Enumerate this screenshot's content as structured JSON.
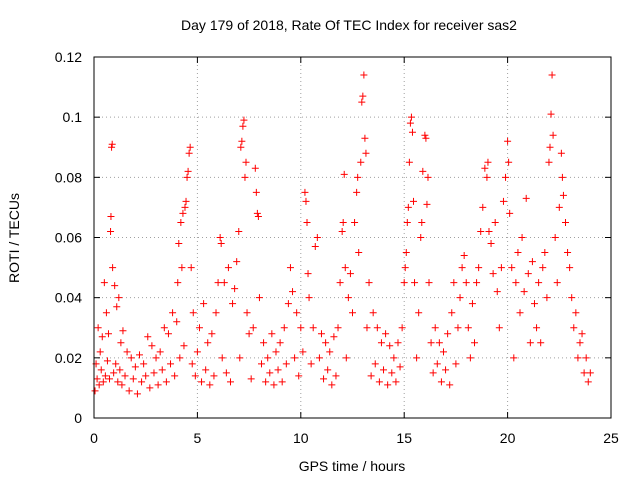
{
  "chart_data": {
    "type": "scatter",
    "title": "Day 179 of 2018, Rate Of TEC Index for receiver sas2",
    "xlabel": "GPS time / hours",
    "ylabel": "ROTI / TECUs",
    "xlim": [
      0,
      25
    ],
    "ylim": [
      0,
      0.12
    ],
    "xticks": [
      0,
      5,
      10,
      15,
      20,
      25
    ],
    "xtick_labels": [
      "0",
      "5",
      "10",
      "15",
      "20",
      "25"
    ],
    "yticks": [
      0,
      0.02,
      0.04,
      0.06,
      0.08,
      0.1,
      0.12
    ],
    "ytick_labels": [
      "0",
      "0.02",
      "0.04",
      "0.06",
      "0.08",
      "0.1",
      "0.12"
    ],
    "grid": true,
    "marker": "+",
    "color": "#ff0000",
    "series": [
      {
        "name": "ROTI",
        "points": [
          [
            0.05,
            0.009
          ],
          [
            0.1,
            0.018
          ],
          [
            0.15,
            0.013
          ],
          [
            0.2,
            0.03
          ],
          [
            0.25,
            0.011
          ],
          [
            0.3,
            0.022
          ],
          [
            0.35,
            0.016
          ],
          [
            0.4,
            0.027
          ],
          [
            0.45,
            0.012
          ],
          [
            0.5,
            0.045
          ],
          [
            0.55,
            0.014
          ],
          [
            0.6,
            0.035
          ],
          [
            0.65,
            0.019
          ],
          [
            0.7,
            0.028
          ],
          [
            0.75,
            0.013
          ],
          [
            0.8,
            0.062
          ],
          [
            0.82,
            0.067
          ],
          [
            0.85,
            0.09
          ],
          [
            0.88,
            0.091
          ],
          [
            0.9,
            0.05
          ],
          [
            0.95,
            0.015
          ],
          [
            1.0,
            0.044
          ],
          [
            1.05,
            0.018
          ],
          [
            1.1,
            0.037
          ],
          [
            1.15,
            0.012
          ],
          [
            1.2,
            0.04
          ],
          [
            1.25,
            0.016
          ],
          [
            1.3,
            0.025
          ],
          [
            1.35,
            0.011
          ],
          [
            1.4,
            0.029
          ],
          [
            1.5,
            0.014
          ],
          [
            1.6,
            0.022
          ],
          [
            1.7,
            0.009
          ],
          [
            1.8,
            0.02
          ],
          [
            1.9,
            0.013
          ],
          [
            2.0,
            0.017
          ],
          [
            2.1,
            0.008
          ],
          [
            2.2,
            0.021
          ],
          [
            2.3,
            0.012
          ],
          [
            2.4,
            0.018
          ],
          [
            2.5,
            0.014
          ],
          [
            2.6,
            0.027
          ],
          [
            2.7,
            0.01
          ],
          [
            2.8,
            0.024
          ],
          [
            2.9,
            0.015
          ],
          [
            3.0,
            0.02
          ],
          [
            3.1,
            0.011
          ],
          [
            3.2,
            0.022
          ],
          [
            3.3,
            0.016
          ],
          [
            3.4,
            0.03
          ],
          [
            3.5,
            0.012
          ],
          [
            3.6,
            0.028
          ],
          [
            3.7,
            0.018
          ],
          [
            3.8,
            0.035
          ],
          [
            3.9,
            0.014
          ],
          [
            4.0,
            0.032
          ],
          [
            4.05,
            0.045
          ],
          [
            4.1,
            0.058
          ],
          [
            4.15,
            0.02
          ],
          [
            4.2,
            0.065
          ],
          [
            4.25,
            0.05
          ],
          [
            4.3,
            0.068
          ],
          [
            4.35,
            0.024
          ],
          [
            4.4,
            0.07
          ],
          [
            4.45,
            0.072
          ],
          [
            4.5,
            0.08
          ],
          [
            4.55,
            0.082
          ],
          [
            4.6,
            0.088
          ],
          [
            4.65,
            0.09
          ],
          [
            4.7,
            0.05
          ],
          [
            4.75,
            0.018
          ],
          [
            4.8,
            0.035
          ],
          [
            4.9,
            0.014
          ],
          [
            5.0,
            0.022
          ],
          [
            5.1,
            0.03
          ],
          [
            5.2,
            0.012
          ],
          [
            5.3,
            0.038
          ],
          [
            5.4,
            0.016
          ],
          [
            5.5,
            0.025
          ],
          [
            5.6,
            0.011
          ],
          [
            5.7,
            0.028
          ],
          [
            5.8,
            0.014
          ],
          [
            5.9,
            0.035
          ],
          [
            6.0,
            0.045
          ],
          [
            6.1,
            0.06
          ],
          [
            6.15,
            0.058
          ],
          [
            6.2,
            0.02
          ],
          [
            6.3,
            0.045
          ],
          [
            6.4,
            0.015
          ],
          [
            6.5,
            0.05
          ],
          [
            6.6,
            0.012
          ],
          [
            6.7,
            0.038
          ],
          [
            6.8,
            0.043
          ],
          [
            6.9,
            0.052
          ],
          [
            7.0,
            0.062
          ],
          [
            7.05,
            0.02
          ],
          [
            7.1,
            0.09
          ],
          [
            7.15,
            0.092
          ],
          [
            7.2,
            0.097
          ],
          [
            7.25,
            0.099
          ],
          [
            7.3,
            0.08
          ],
          [
            7.35,
            0.085
          ],
          [
            7.4,
            0.035
          ],
          [
            7.5,
            0.028
          ],
          [
            7.6,
            0.013
          ],
          [
            7.7,
            0.03
          ],
          [
            7.8,
            0.083
          ],
          [
            7.85,
            0.075
          ],
          [
            7.9,
            0.068
          ],
          [
            7.95,
            0.067
          ],
          [
            8.0,
            0.04
          ],
          [
            8.1,
            0.018
          ],
          [
            8.2,
            0.025
          ],
          [
            8.3,
            0.012
          ],
          [
            8.4,
            0.02
          ],
          [
            8.5,
            0.015
          ],
          [
            8.6,
            0.028
          ],
          [
            8.7,
            0.011
          ],
          [
            8.8,
            0.022
          ],
          [
            8.9,
            0.016
          ],
          [
            9.0,
            0.025
          ],
          [
            9.1,
            0.012
          ],
          [
            9.2,
            0.03
          ],
          [
            9.3,
            0.018
          ],
          [
            9.4,
            0.038
          ],
          [
            9.5,
            0.05
          ],
          [
            9.6,
            0.042
          ],
          [
            9.7,
            0.02
          ],
          [
            9.8,
            0.035
          ],
          [
            9.9,
            0.014
          ],
          [
            10.0,
            0.03
          ],
          [
            10.1,
            0.022
          ],
          [
            10.2,
            0.075
          ],
          [
            10.25,
            0.072
          ],
          [
            10.3,
            0.065
          ],
          [
            10.35,
            0.048
          ],
          [
            10.4,
            0.04
          ],
          [
            10.5,
            0.018
          ],
          [
            10.6,
            0.03
          ],
          [
            10.7,
            0.057
          ],
          [
            10.8,
            0.06
          ],
          [
            10.9,
            0.02
          ],
          [
            11.0,
            0.028
          ],
          [
            11.1,
            0.013
          ],
          [
            11.2,
            0.025
          ],
          [
            11.3,
            0.016
          ],
          [
            11.4,
            0.022
          ],
          [
            11.5,
            0.011
          ],
          [
            11.6,
            0.027
          ],
          [
            11.7,
            0.014
          ],
          [
            11.8,
            0.03
          ],
          [
            11.9,
            0.045
          ],
          [
            12.0,
            0.062
          ],
          [
            12.05,
            0.065
          ],
          [
            12.1,
            0.081
          ],
          [
            12.15,
            0.05
          ],
          [
            12.2,
            0.02
          ],
          [
            12.3,
            0.04
          ],
          [
            12.4,
            0.048
          ],
          [
            12.5,
            0.035
          ],
          [
            12.6,
            0.065
          ],
          [
            12.7,
            0.075
          ],
          [
            12.75,
            0.08
          ],
          [
            12.8,
            0.055
          ],
          [
            12.9,
            0.085
          ],
          [
            12.95,
            0.105
          ],
          [
            13.0,
            0.107
          ],
          [
            13.05,
            0.114
          ],
          [
            13.1,
            0.093
          ],
          [
            13.15,
            0.088
          ],
          [
            13.2,
            0.03
          ],
          [
            13.3,
            0.045
          ],
          [
            13.4,
            0.014
          ],
          [
            13.5,
            0.035
          ],
          [
            13.6,
            0.018
          ],
          [
            13.7,
            0.03
          ],
          [
            13.8,
            0.012
          ],
          [
            13.9,
            0.025
          ],
          [
            14.0,
            0.016
          ],
          [
            14.1,
            0.028
          ],
          [
            14.2,
            0.011
          ],
          [
            14.3,
            0.024
          ],
          [
            14.4,
            0.015
          ],
          [
            14.5,
            0.02
          ],
          [
            14.6,
            0.012
          ],
          [
            14.7,
            0.025
          ],
          [
            14.8,
            0.017
          ],
          [
            14.9,
            0.03
          ],
          [
            15.0,
            0.045
          ],
          [
            15.05,
            0.05
          ],
          [
            15.1,
            0.055
          ],
          [
            15.15,
            0.065
          ],
          [
            15.2,
            0.07
          ],
          [
            15.25,
            0.085
          ],
          [
            15.3,
            0.098
          ],
          [
            15.35,
            0.1
          ],
          [
            15.4,
            0.095
          ],
          [
            15.45,
            0.072
          ],
          [
            15.5,
            0.045
          ],
          [
            15.6,
            0.02
          ],
          [
            15.7,
            0.035
          ],
          [
            15.8,
            0.06
          ],
          [
            15.85,
            0.065
          ],
          [
            15.9,
            0.082
          ],
          [
            16.0,
            0.094
          ],
          [
            16.05,
            0.093
          ],
          [
            16.1,
            0.071
          ],
          [
            16.15,
            0.08
          ],
          [
            16.2,
            0.045
          ],
          [
            16.3,
            0.025
          ],
          [
            16.4,
            0.015
          ],
          [
            16.5,
            0.03
          ],
          [
            16.6,
            0.018
          ],
          [
            16.7,
            0.025
          ],
          [
            16.8,
            0.012
          ],
          [
            16.9,
            0.022
          ],
          [
            17.0,
            0.016
          ],
          [
            17.1,
            0.028
          ],
          [
            17.2,
            0.011
          ],
          [
            17.3,
            0.035
          ],
          [
            17.4,
            0.045
          ],
          [
            17.5,
            0.018
          ],
          [
            17.6,
            0.03
          ],
          [
            17.7,
            0.04
          ],
          [
            17.8,
            0.05
          ],
          [
            17.9,
            0.054
          ],
          [
            18.0,
            0.045
          ],
          [
            18.1,
            0.03
          ],
          [
            18.2,
            0.02
          ],
          [
            18.3,
            0.038
          ],
          [
            18.4,
            0.025
          ],
          [
            18.5,
            0.045
          ],
          [
            18.6,
            0.05
          ],
          [
            18.7,
            0.062
          ],
          [
            18.8,
            0.07
          ],
          [
            18.9,
            0.083
          ],
          [
            19.0,
            0.08
          ],
          [
            19.05,
            0.085
          ],
          [
            19.1,
            0.062
          ],
          [
            19.2,
            0.058
          ],
          [
            19.3,
            0.048
          ],
          [
            19.4,
            0.065
          ],
          [
            19.5,
            0.042
          ],
          [
            19.6,
            0.03
          ],
          [
            19.7,
            0.05
          ],
          [
            19.8,
            0.072
          ],
          [
            19.9,
            0.08
          ],
          [
            20.0,
            0.092
          ],
          [
            20.05,
            0.085
          ],
          [
            20.1,
            0.068
          ],
          [
            20.2,
            0.05
          ],
          [
            20.3,
            0.02
          ],
          [
            20.4,
            0.045
          ],
          [
            20.5,
            0.055
          ],
          [
            20.6,
            0.035
          ],
          [
            20.7,
            0.06
          ],
          [
            20.8,
            0.042
          ],
          [
            20.9,
            0.073
          ],
          [
            21.0,
            0.048
          ],
          [
            21.1,
            0.025
          ],
          [
            21.2,
            0.052
          ],
          [
            21.3,
            0.038
          ],
          [
            21.4,
            0.03
          ],
          [
            21.5,
            0.045
          ],
          [
            21.6,
            0.025
          ],
          [
            21.7,
            0.05
          ],
          [
            21.8,
            0.055
          ],
          [
            21.9,
            0.04
          ],
          [
            22.0,
            0.085
          ],
          [
            22.05,
            0.09
          ],
          [
            22.1,
            0.101
          ],
          [
            22.15,
            0.114
          ],
          [
            22.2,
            0.094
          ],
          [
            22.3,
            0.06
          ],
          [
            22.4,
            0.045
          ],
          [
            22.5,
            0.07
          ],
          [
            22.6,
            0.088
          ],
          [
            22.65,
            0.08
          ],
          [
            22.7,
            0.074
          ],
          [
            22.8,
            0.065
          ],
          [
            22.9,
            0.055
          ],
          [
            23.0,
            0.05
          ],
          [
            23.1,
            0.04
          ],
          [
            23.2,
            0.03
          ],
          [
            23.3,
            0.035
          ],
          [
            23.4,
            0.02
          ],
          [
            23.5,
            0.025
          ],
          [
            23.6,
            0.028
          ],
          [
            23.7,
            0.015
          ],
          [
            23.8,
            0.02
          ],
          [
            23.9,
            0.012
          ],
          [
            24.0,
            0.015
          ]
        ]
      }
    ]
  }
}
